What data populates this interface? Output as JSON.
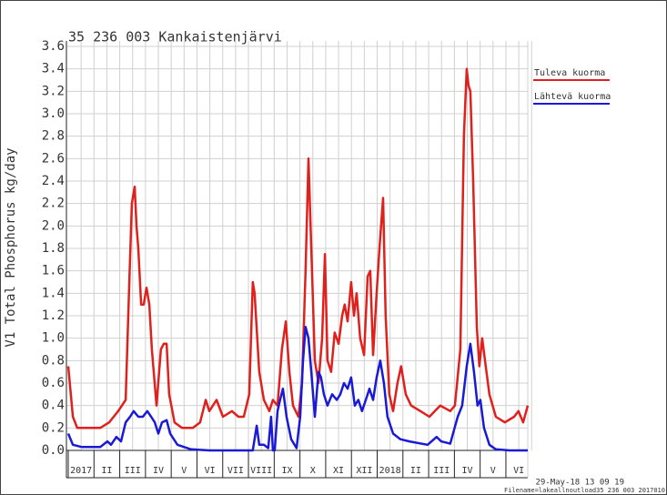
{
  "chart_data": {
    "type": "line",
    "title": "35 236 003 Kankaistenjärvi",
    "y_label": "V1 Total Phosphorus kg/day",
    "footer": [
      "29-May-18 13 09 19",
      "Filename=lakeallnoutload35 236 003 2017010"
    ],
    "xlim": [
      0,
      17.85
    ],
    "ylim": [
      0,
      3.6
    ],
    "xticks": [
      {
        "value": 0.5,
        "label": "2017"
      },
      {
        "value": 1.5,
        "label": "II"
      },
      {
        "value": 2.5,
        "label": "III"
      },
      {
        "value": 3.5,
        "label": "IV"
      },
      {
        "value": 4.5,
        "label": "V"
      },
      {
        "value": 5.5,
        "label": "VI"
      },
      {
        "value": 6.5,
        "label": "VII"
      },
      {
        "value": 7.5,
        "label": "VIII"
      },
      {
        "value": 8.5,
        "label": "IX"
      },
      {
        "value": 9.5,
        "label": "X"
      },
      {
        "value": 10.5,
        "label": "XI"
      },
      {
        "value": 11.5,
        "label": "XII"
      },
      {
        "value": 12.5,
        "label": "2018"
      },
      {
        "value": 13.5,
        "label": "II"
      },
      {
        "value": 14.5,
        "label": "III"
      },
      {
        "value": 15.5,
        "label": "IV"
      },
      {
        "value": 16.5,
        "label": "V"
      },
      {
        "value": 17.5,
        "label": "VI"
      }
    ],
    "yticks": [
      {
        "value": 0,
        "label": "0.0"
      },
      0.2,
      0.4,
      0.6,
      0.8,
      {
        "value": 1,
        "label": "1.0"
      },
      1.2,
      1.4,
      1.6,
      1.8,
      {
        "value": 2,
        "label": "2.0"
      },
      2.2,
      2.4,
      2.6,
      2.8,
      {
        "value": 3,
        "label": "3.0"
      },
      3.2,
      3.4,
      3.6
    ],
    "grid": true,
    "legend": "upper right",
    "series": [
      {
        "name": "Tuleva kuorma",
        "color": "#e0201c",
        "x": [
          0,
          0.18,
          0.35,
          1.24,
          1.59,
          1.94,
          2.23,
          2.37,
          2.47,
          2.58,
          2.65,
          2.72,
          2.83,
          2.93,
          3.04,
          3.15,
          3.25,
          3.43,
          3.6,
          3.71,
          3.82,
          3.92,
          4.13,
          4.42,
          4.84,
          5.12,
          5.34,
          5.48,
          5.76,
          6.01,
          6.36,
          6.61,
          6.82,
          7.03,
          7.17,
          7.24,
          7.42,
          7.6,
          7.81,
          7.95,
          8.13,
          8.3,
          8.45,
          8.59,
          8.73,
          8.94,
          9.08,
          9.22,
          9.33,
          9.44,
          9.58,
          9.72,
          9.86,
          9.97,
          10.07,
          10.21,
          10.35,
          10.5,
          10.64,
          10.74,
          10.85,
          10.99,
          11.1,
          11.2,
          11.34,
          11.49,
          11.63,
          11.73,
          11.84,
          11.98,
          12.09,
          12.23,
          12.33,
          12.47,
          12.62,
          12.79,
          12.93,
          13.11,
          13.32,
          13.68,
          14.03,
          14.24,
          14.45,
          14.84,
          15.02,
          15.23,
          15.37,
          15.48,
          15.55,
          15.62,
          15.73,
          15.87,
          15.97,
          16.08,
          16.19,
          16.36,
          16.61,
          16.96,
          17.32,
          17.49,
          17.67,
          17.85
        ],
        "values": [
          0.75,
          0.3,
          0.2,
          0.2,
          0.25,
          0.35,
          0.45,
          1.5,
          2.2,
          2.35,
          2.0,
          1.8,
          1.3,
          1.3,
          1.45,
          1.3,
          0.9,
          0.4,
          0.9,
          0.95,
          0.95,
          0.5,
          0.25,
          0.2,
          0.2,
          0.25,
          0.45,
          0.35,
          0.45,
          0.3,
          0.35,
          0.3,
          0.3,
          0.5,
          1.5,
          1.4,
          0.7,
          0.45,
          0.35,
          0.45,
          0.4,
          0.9,
          1.15,
          0.7,
          0.4,
          0.3,
          0.6,
          1.6,
          2.6,
          1.8,
          0.8,
          0.6,
          1.0,
          1.75,
          0.8,
          0.7,
          1.05,
          0.95,
          1.2,
          1.3,
          1.15,
          1.5,
          1.2,
          1.4,
          1.0,
          0.85,
          1.55,
          1.6,
          0.85,
          1.4,
          1.8,
          2.25,
          1.2,
          0.5,
          0.35,
          0.6,
          0.75,
          0.5,
          0.4,
          0.35,
          0.3,
          0.35,
          0.4,
          0.35,
          0.4,
          0.9,
          2.8,
          3.4,
          3.25,
          3.2,
          2.4,
          1.1,
          0.75,
          1.0,
          0.8,
          0.5,
          0.3,
          0.25,
          0.3,
          0.35,
          0.25,
          0.4
        ]
      },
      {
        "name": "Lähtevä kuorma",
        "color": "#1a1ad6",
        "x": [
          0,
          0.18,
          0.53,
          1.24,
          1.52,
          1.66,
          1.87,
          2.05,
          2.23,
          2.4,
          2.54,
          2.72,
          2.9,
          3.07,
          3.22,
          3.36,
          3.5,
          3.64,
          3.82,
          3.96,
          4.24,
          4.77,
          5.48,
          7.17,
          7.32,
          7.42,
          7.6,
          7.77,
          7.88,
          7.95,
          8.02,
          8.13,
          8.23,
          8.34,
          8.48,
          8.66,
          8.87,
          9.01,
          9.12,
          9.22,
          9.33,
          9.44,
          9.58,
          9.72,
          9.82,
          9.93,
          10.07,
          10.25,
          10.43,
          10.57,
          10.71,
          10.85,
          10.99,
          11.13,
          11.27,
          11.41,
          11.56,
          11.7,
          11.84,
          11.98,
          12.12,
          12.26,
          12.4,
          12.62,
          12.9,
          13.25,
          13.96,
          14.31,
          14.49,
          14.84,
          15.13,
          15.3,
          15.48,
          15.62,
          15.76,
          15.9,
          16.01,
          16.15,
          16.36,
          16.61,
          17.14,
          17.85
        ],
        "values": [
          0.15,
          0.05,
          0.03,
          0.03,
          0.08,
          0.05,
          0.12,
          0.08,
          0.25,
          0.3,
          0.35,
          0.3,
          0.3,
          0.35,
          0.3,
          0.25,
          0.15,
          0.25,
          0.27,
          0.15,
          0.05,
          0.01,
          0,
          0,
          0.22,
          0.05,
          0.05,
          0.02,
          0.3,
          0,
          0,
          0.35,
          0.45,
          0.55,
          0.3,
          0.1,
          0.02,
          0.3,
          0.8,
          1.1,
          1.0,
          0.7,
          0.3,
          0.7,
          0.65,
          0.5,
          0.4,
          0.5,
          0.45,
          0.5,
          0.6,
          0.55,
          0.65,
          0.4,
          0.45,
          0.35,
          0.45,
          0.55,
          0.45,
          0.65,
          0.8,
          0.6,
          0.3,
          0.15,
          0.1,
          0.08,
          0.05,
          0.12,
          0.08,
          0.06,
          0.3,
          0.4,
          0.75,
          0.95,
          0.7,
          0.4,
          0.45,
          0.2,
          0.05,
          0.01,
          0,
          0
        ]
      }
    ]
  }
}
